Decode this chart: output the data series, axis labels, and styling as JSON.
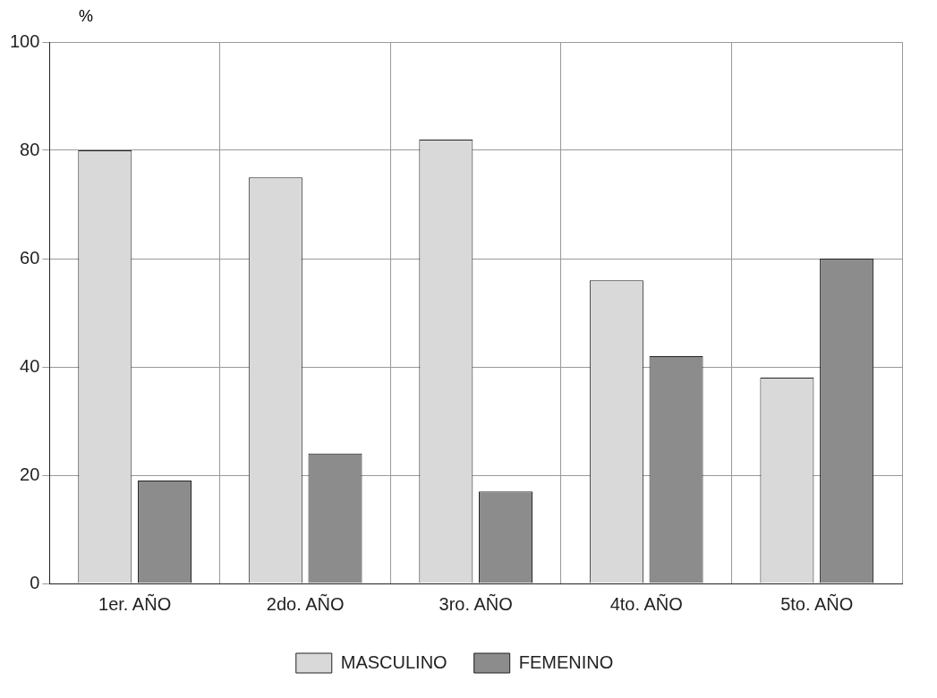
{
  "chart_data": {
    "type": "bar",
    "ylabel": "%",
    "categories": [
      "1er. AÑO",
      "2do. AÑO",
      "3ro. AÑO",
      "4to. AÑO",
      "5to. AÑO"
    ],
    "series": [
      {
        "name": "MASCULINO",
        "color": "#d9d9d9",
        "values": [
          80,
          75,
          82,
          56,
          38
        ]
      },
      {
        "name": "FEMENINO",
        "color": "#8c8c8c",
        "values": [
          19,
          24,
          17,
          42,
          60
        ]
      }
    ],
    "ylim": [
      0,
      100
    ],
    "yticks": [
      0,
      20,
      40,
      60,
      80,
      100
    ],
    "grid": true,
    "legend": "bottom"
  }
}
